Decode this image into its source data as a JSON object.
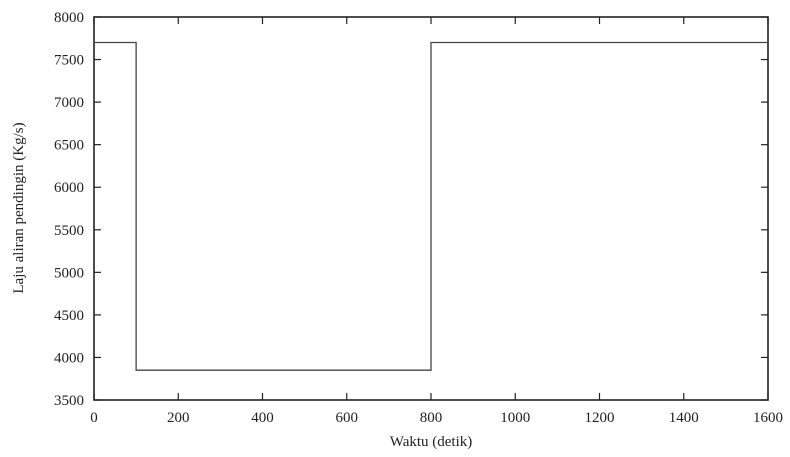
{
  "chart_data": {
    "type": "line",
    "title": "",
    "xlabel": "Waktu (detik)",
    "ylabel": "Laju aliran pendingin (Kg/s)",
    "xlim": [
      0,
      1600
    ],
    "ylim": [
      3500,
      8000
    ],
    "xticks": [
      0,
      200,
      400,
      600,
      800,
      1000,
      1200,
      1400,
      1600
    ],
    "yticks": [
      3500,
      4000,
      4500,
      5000,
      5500,
      6000,
      6500,
      7000,
      7500,
      8000
    ],
    "grid": false,
    "legend": "none",
    "series": [
      {
        "color": "#444444",
        "points": [
          [
            0,
            7700
          ],
          [
            100,
            7700
          ],
          [
            100,
            3850
          ],
          [
            800,
            3850
          ],
          [
            800,
            7700
          ],
          [
            1600,
            7700
          ]
        ]
      }
    ]
  }
}
